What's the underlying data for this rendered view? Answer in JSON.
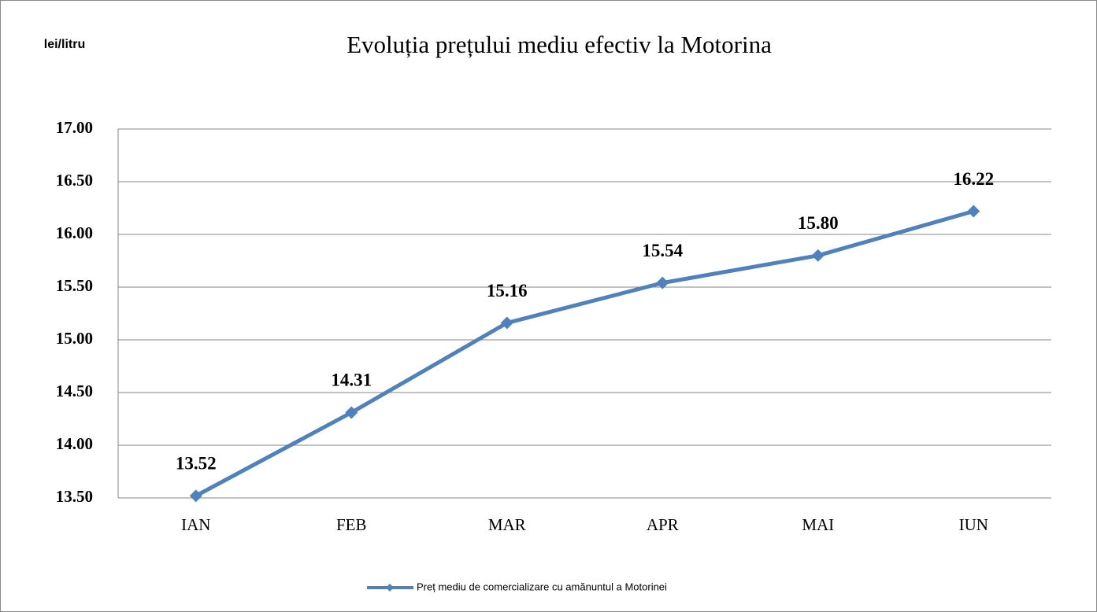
{
  "chart_data": {
    "type": "line",
    "title": "Evoluția prețului mediu efectiv la Motorina",
    "y_label": "lei/litru",
    "categories": [
      "IAN",
      "FEB",
      "MAR",
      "APR",
      "MAI",
      "IUN"
    ],
    "series": [
      {
        "name": "Preț mediu de comercializare cu amănuntul a Motorinei",
        "color": "#4f81bd",
        "values": [
          13.52,
          14.31,
          15.16,
          15.54,
          15.8,
          16.22
        ],
        "value_labels": [
          "13.52",
          "14.31",
          "15.16",
          "15.54",
          "15.80",
          "16.22"
        ]
      }
    ],
    "ylim": [
      13.5,
      17
    ],
    "yticks": [
      {
        "value": 13.5,
        "label": "13.50"
      },
      {
        "value": 14,
        "label": "14.00"
      },
      {
        "value": 14.5,
        "label": "14.50"
      },
      {
        "value": 15,
        "label": "15.00"
      },
      {
        "value": 15.5,
        "label": "15.50"
      },
      {
        "value": 16,
        "label": "16.00"
      },
      {
        "value": 16.5,
        "label": "16.50"
      },
      {
        "value": 17,
        "label": "17.00"
      }
    ],
    "grid": true,
    "legend": "bottom"
  }
}
